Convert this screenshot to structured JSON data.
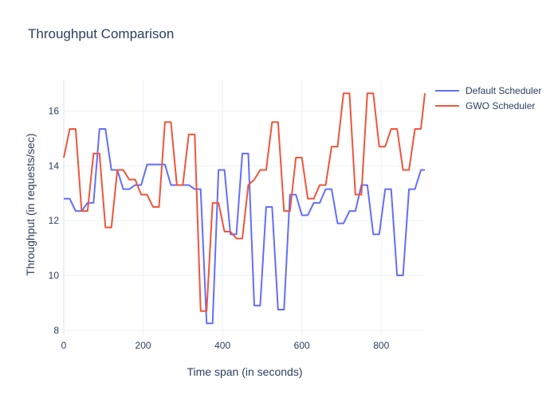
{
  "chart_data": {
    "type": "line",
    "title": "Throughput Comparison",
    "xlabel": "Time span (in seconds)",
    "ylabel": "Throughput (in requests/sec)",
    "xlim": [
      0,
      910
    ],
    "ylim": [
      7.85,
      17.15
    ],
    "xticks": [
      0,
      200,
      400,
      600,
      800
    ],
    "yticks": [
      8,
      10,
      12,
      14,
      16
    ],
    "grid": true,
    "legend_position": "top-right",
    "series": [
      {
        "name": "Default Scheduler",
        "color": "#636efa",
        "points": [
          [
            0,
            12.8
          ],
          [
            15,
            12.8
          ],
          [
            30,
            12.35
          ],
          [
            45,
            12.35
          ],
          [
            60,
            12.65
          ],
          [
            75,
            12.65
          ],
          [
            90,
            15.35
          ],
          [
            105,
            15.35
          ],
          [
            120,
            13.85
          ],
          [
            135,
            13.85
          ],
          [
            150,
            13.15
          ],
          [
            165,
            13.15
          ],
          [
            180,
            13.3
          ],
          [
            195,
            13.3
          ],
          [
            210,
            14.05
          ],
          [
            225,
            14.05
          ],
          [
            240,
            14.05
          ],
          [
            255,
            14.05
          ],
          [
            270,
            13.3
          ],
          [
            285,
            13.3
          ],
          [
            300,
            13.3
          ],
          [
            315,
            13.3
          ],
          [
            330,
            13.15
          ],
          [
            345,
            13.15
          ],
          [
            360,
            8.25
          ],
          [
            375,
            8.25
          ],
          [
            390,
            13.85
          ],
          [
            405,
            13.85
          ],
          [
            420,
            11.5
          ],
          [
            435,
            11.5
          ],
          [
            450,
            14.45
          ],
          [
            465,
            14.45
          ],
          [
            480,
            8.9
          ],
          [
            495,
            8.9
          ],
          [
            510,
            12.5
          ],
          [
            525,
            12.5
          ],
          [
            540,
            8.75
          ],
          [
            555,
            8.75
          ],
          [
            570,
            12.95
          ],
          [
            585,
            12.95
          ],
          [
            600,
            12.2
          ],
          [
            615,
            12.2
          ],
          [
            630,
            12.65
          ],
          [
            645,
            12.65
          ],
          [
            660,
            13.15
          ],
          [
            675,
            13.15
          ],
          [
            690,
            11.9
          ],
          [
            705,
            11.9
          ],
          [
            720,
            12.35
          ],
          [
            735,
            12.35
          ],
          [
            750,
            13.3
          ],
          [
            765,
            13.3
          ],
          [
            780,
            11.5
          ],
          [
            795,
            11.5
          ],
          [
            810,
            13.15
          ],
          [
            825,
            13.15
          ],
          [
            840,
            10
          ],
          [
            855,
            10
          ],
          [
            870,
            13.15
          ],
          [
            885,
            13.15
          ],
          [
            900,
            13.85
          ],
          [
            910,
            13.85
          ]
        ]
      },
      {
        "name": "GWO Scheduler",
        "color": "#ef553b",
        "points": [
          [
            0,
            14.3
          ],
          [
            15,
            15.35
          ],
          [
            30,
            15.35
          ],
          [
            45,
            12.35
          ],
          [
            60,
            12.35
          ],
          [
            75,
            14.45
          ],
          [
            90,
            14.45
          ],
          [
            105,
            11.75
          ],
          [
            120,
            11.75
          ],
          [
            135,
            13.85
          ],
          [
            150,
            13.85
          ],
          [
            165,
            13.5
          ],
          [
            180,
            13.5
          ],
          [
            195,
            12.95
          ],
          [
            210,
            12.95
          ],
          [
            225,
            12.5
          ],
          [
            240,
            12.5
          ],
          [
            255,
            15.6
          ],
          [
            270,
            15.6
          ],
          [
            285,
            13.3
          ],
          [
            300,
            13.3
          ],
          [
            315,
            15.15
          ],
          [
            330,
            15.15
          ],
          [
            345,
            8.7
          ],
          [
            360,
            8.7
          ],
          [
            375,
            12.65
          ],
          [
            390,
            12.65
          ],
          [
            405,
            11.6
          ],
          [
            420,
            11.6
          ],
          [
            435,
            11.35
          ],
          [
            450,
            11.35
          ],
          [
            465,
            13.3
          ],
          [
            480,
            13.5
          ],
          [
            495,
            13.85
          ],
          [
            510,
            13.85
          ],
          [
            525,
            15.6
          ],
          [
            540,
            15.6
          ],
          [
            555,
            12.35
          ],
          [
            570,
            12.35
          ],
          [
            585,
            14.3
          ],
          [
            600,
            14.3
          ],
          [
            615,
            12.8
          ],
          [
            630,
            12.8
          ],
          [
            645,
            13.3
          ],
          [
            660,
            13.3
          ],
          [
            675,
            14.7
          ],
          [
            690,
            14.7
          ],
          [
            705,
            16.65
          ],
          [
            720,
            16.65
          ],
          [
            735,
            12.95
          ],
          [
            750,
            12.95
          ],
          [
            765,
            16.65
          ],
          [
            780,
            16.65
          ],
          [
            795,
            14.7
          ],
          [
            810,
            14.7
          ],
          [
            825,
            15.35
          ],
          [
            840,
            15.35
          ],
          [
            855,
            13.85
          ],
          [
            870,
            13.85
          ],
          [
            885,
            15.35
          ],
          [
            900,
            15.35
          ],
          [
            910,
            16.65
          ]
        ]
      }
    ]
  }
}
